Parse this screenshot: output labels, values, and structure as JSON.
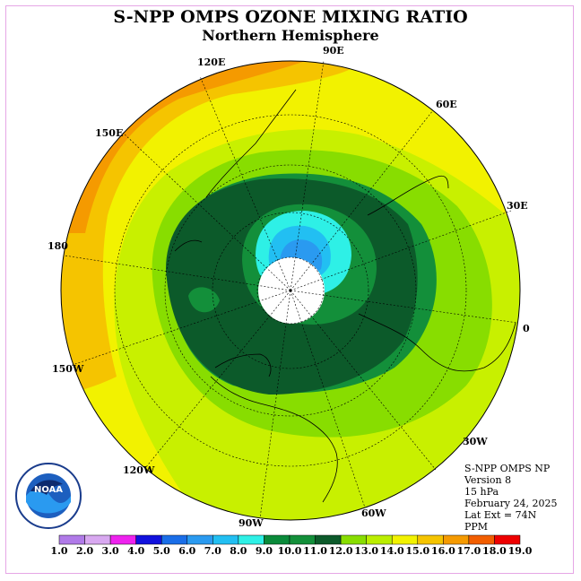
{
  "title": "S-NPP OMPS OZONE MIXING RATIO",
  "subtitle": "Northern Hemisphere",
  "longitude_labels": [
    "90E",
    "60E",
    "30E",
    "0",
    "30W",
    "60W",
    "90W",
    "120W",
    "150W",
    "180",
    "150E",
    "120E"
  ],
  "info": {
    "instrument": "S-NPP OMPS NP",
    "version": "Version 8",
    "level": "15 hPa",
    "date": "February 24, 2025",
    "lat_ext": "Lat Ext = 74N",
    "units": "PPM"
  },
  "logo": {
    "name": "NOAA",
    "text": "NOAA"
  },
  "colorbar": {
    "labels": [
      "1.0",
      "2.0",
      "3.0",
      "4.0",
      "5.0",
      "6.0",
      "7.0",
      "8.0",
      "9.0",
      "10.0",
      "11.0",
      "12.0",
      "13.0",
      "14.0",
      "15.0",
      "16.0",
      "17.0",
      "18.0",
      "19.0"
    ],
    "colors": [
      "#b07ae8",
      "#d8a8f0",
      "#ee22ee",
      "#1111dd",
      "#1a6ee8",
      "#2a9af0",
      "#22bff2",
      "#2ef0e6",
      "#0a8a3a",
      "#138f3a",
      "#0c5a2a",
      "#88dd00",
      "#bbee00",
      "#f2f200",
      "#f5c400",
      "#f59a00",
      "#f25e00",
      "#ee0000",
      "#8b5a2b"
    ]
  }
}
